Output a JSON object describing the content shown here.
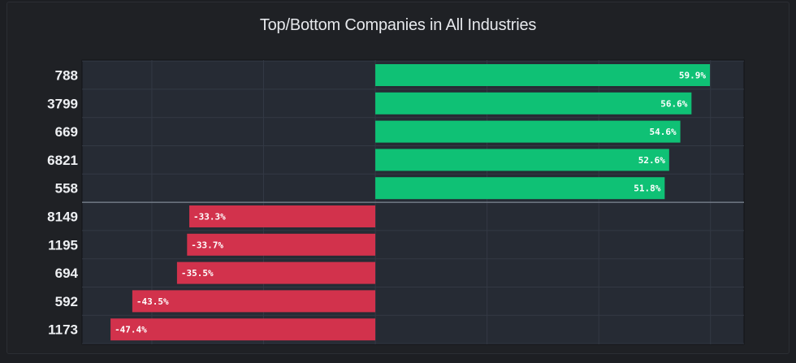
{
  "chart_data": {
    "type": "bar",
    "orientation": "horizontal",
    "title": "Top/Bottom Companies in All Industries",
    "xlabel": "",
    "ylabel": "",
    "grid": true,
    "categories": [
      "788",
      "3799",
      "669",
      "6821",
      "558",
      "8149",
      "1195",
      "694",
      "592",
      "1173"
    ],
    "values": [
      59.9,
      56.6,
      54.6,
      52.6,
      51.8,
      -33.3,
      -33.7,
      -35.5,
      -43.5,
      -47.4
    ],
    "value_labels": [
      "59.9%",
      "56.6%",
      "54.6%",
      "52.6%",
      "51.8%",
      "-33.3%",
      "-33.7%",
      "-35.5%",
      "-43.5%",
      "-47.4%"
    ],
    "xlim": [
      -52.5,
      66
    ],
    "colors": {
      "positive": "#0fc175",
      "negative": "#d2324c",
      "plot_bg": "#262b34",
      "grid": "#333944",
      "divider": "#7f8794"
    }
  }
}
